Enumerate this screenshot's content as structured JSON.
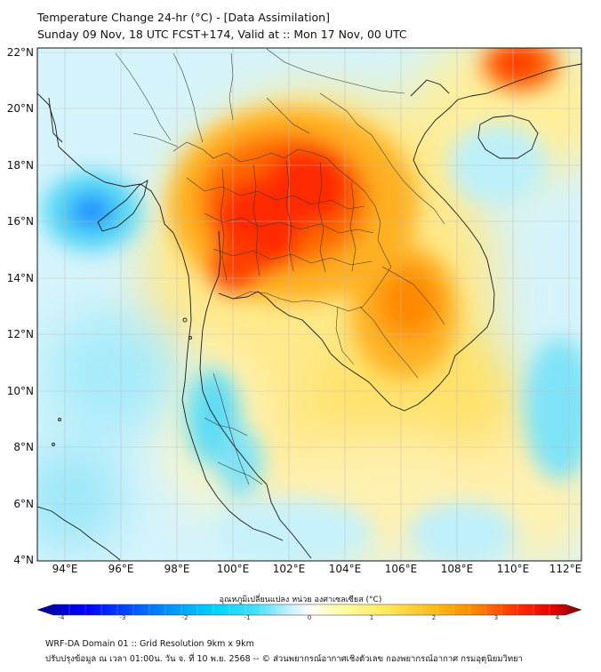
{
  "header": {
    "title_line1": "Temperature Change 24-hr (°C) - [Data Assimilation]",
    "title_line2": "Sunday 09 Nov, 18 UTC FCST+174, Valid at :: Mon 17 Nov, 00 UTC"
  },
  "map": {
    "lat_labels": [
      "22°N",
      "20°N",
      "18°N",
      "16°N",
      "14°N",
      "12°N",
      "10°N",
      "8°N",
      "6°N",
      "4°N"
    ],
    "lon_labels": [
      "94°E",
      "96°E",
      "98°E",
      "100°E",
      "102°E",
      "104°E",
      "106°E",
      "108°E",
      "110°E",
      "112°E"
    ],
    "lat_range": [
      4,
      22.3
    ],
    "lon_range": [
      93,
      112.5
    ]
  },
  "colorbar": {
    "title": "อุณหภูมิเปลี่ยนแปลง หน่วย องศาเซลเซียส (°C)",
    "ticks": [
      "-4",
      "-3",
      "-2",
      "-1",
      "0",
      "1",
      "2",
      "3",
      "4"
    ],
    "range": [
      -4,
      4
    ],
    "colors": [
      "#00008b",
      "#0000ff",
      "#0080ff",
      "#00cfff",
      "#40e0ff",
      "#bfefff",
      "#ffffff",
      "#ffff9e",
      "#ffe860",
      "#ffc020",
      "#ff8c00",
      "#ff3000",
      "#e00000",
      "#7a0000"
    ]
  },
  "footer": {
    "line1": "WRF-DA Domain 01 :: Grid Resolution 9km x 9km",
    "line2": "ปรับปรุงข้อมูล ณ เวลา 01:00น. วัน จ. ที่ 10 พ.ย. 2568 -- © ส่วนพยากรณ์อากาศเชิงตัวเลข กองพยากรณ์อากาศ กรมอุตุนิยมวิทยา"
  }
}
